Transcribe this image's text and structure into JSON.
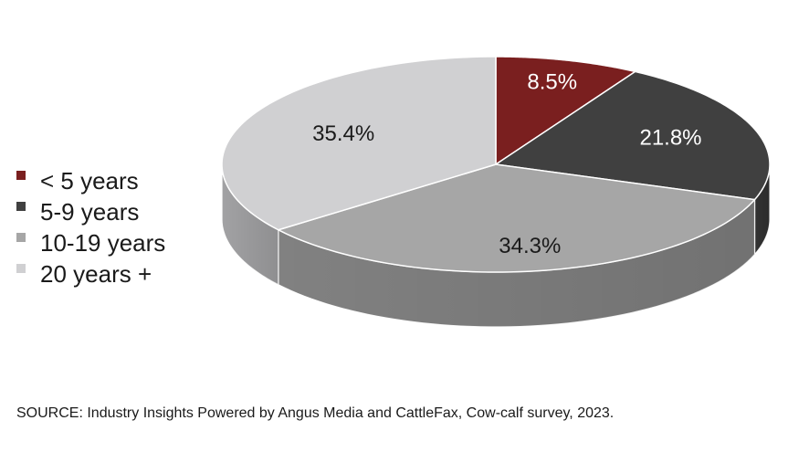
{
  "chart_data": {
    "type": "pie",
    "style": "3d",
    "title": "",
    "categories": [
      "< 5 years",
      "5-9 years",
      "10-19 years",
      "20 years +"
    ],
    "values": [
      8.5,
      21.8,
      34.3,
      35.4
    ],
    "labels": [
      "8.5%",
      "21.8%",
      "34.3%",
      "35.4%"
    ],
    "colors": [
      "#7a1f1f",
      "#404040",
      "#a6a6a6",
      "#d0d0d2"
    ],
    "label_colors": [
      "#ffffff",
      "#ffffff",
      "#1a1a1a",
      "#1a1a1a"
    ],
    "legend_position": "left",
    "source": "SOURCE: Industry Insights Powered by Angus Media and CattleFax, Cow-calf survey, 2023."
  }
}
